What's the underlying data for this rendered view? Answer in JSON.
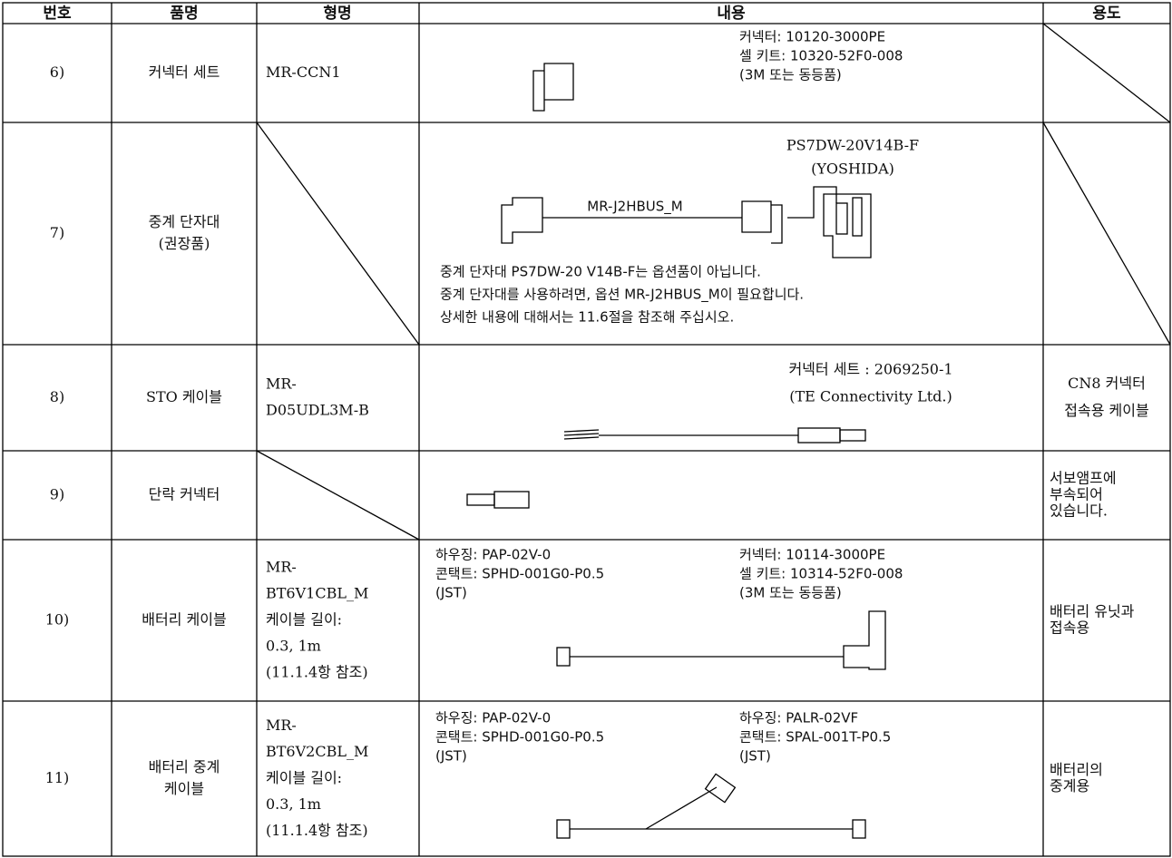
{
  "table": {
    "header": [
      "번호",
      "품명",
      "형명",
      "내용",
      "용도"
    ],
    "rows": [
      {
        "no": "6)",
        "name": [
          "커넥터 세트"
        ],
        "model": [
          "MR-CCN1"
        ],
        "content": {
          "right": [
            "커넥터: 10120-3000PE",
            "셀 키트: 10320-52F0-008",
            "(3M 또는 동등품)"
          ]
        }
      },
      {
        "no": "7)",
        "name": [
          "중계 단자대",
          "(권장품)"
        ],
        "content": {
          "top": [
            "PS7DW-20V14B-F",
            "(YOSHIDA)"
          ],
          "cable": [
            "MR-J2HBUS_M"
          ],
          "notes": [
            "중계 단자대 PS7DW-20 V14B-F는 옵션품이 아닙니다.",
            "중계 단자대를 사용하려면, 옵션 MR-J2HBUS_M이 필요합니다.",
            "상세한 내용에 대해서는 11.6절을 참조해 주십시오."
          ]
        }
      },
      {
        "no": "8)",
        "name": [
          "STO 케이블"
        ],
        "model": [
          "MR-",
          "D05UDL3M-B"
        ],
        "content": {
          "top": [
            "커넥터 세트 : 2069250-1",
            "(TE Connectivity Ltd.)"
          ]
        },
        "usage": [
          "CN8 커넥터",
          "접속용 케이블"
        ]
      },
      {
        "no": "9)",
        "name": [
          "단락 커넥터"
        ],
        "usage": [
          "서보앰프에",
          "부속되어",
          "있습니다."
        ]
      },
      {
        "no": "10)",
        "name": [
          "배터리 케이블"
        ],
        "model": [
          "MR-",
          "BT6V1CBL_M",
          "케이블 길이:",
          "0.3, 1m",
          "(11.1.4항 참조)"
        ],
        "content": {
          "left": [
            "하우징: PAP-02V-0",
            "콘택트: SPHD-001G0-P0.5",
            "(JST)"
          ],
          "right": [
            "커넥터: 10114-3000PE",
            "셀 키트: 10314-52F0-008",
            "(3M 또는 동등품)"
          ]
        },
        "usage": [
          "배터리 유닛과",
          "접속용"
        ]
      },
      {
        "no": "11)",
        "name": [
          "배터리 중계",
          "케이블"
        ],
        "model": [
          "MR-",
          "BT6V2CBL_M",
          "케이블 길이:",
          "0.3, 1m",
          "(11.1.4항 참조)"
        ],
        "content": {
          "left": [
            "하우징: PAP-02V-0",
            "콘택트: SPHD-001G0-P0.5",
            "(JST)"
          ],
          "right": [
            "하우징: PALR-02VF",
            "콘택트: SPAL-001T-P0.5",
            "(JST)"
          ]
        },
        "usage": [
          "배터리의",
          "중계용"
        ]
      }
    ]
  }
}
